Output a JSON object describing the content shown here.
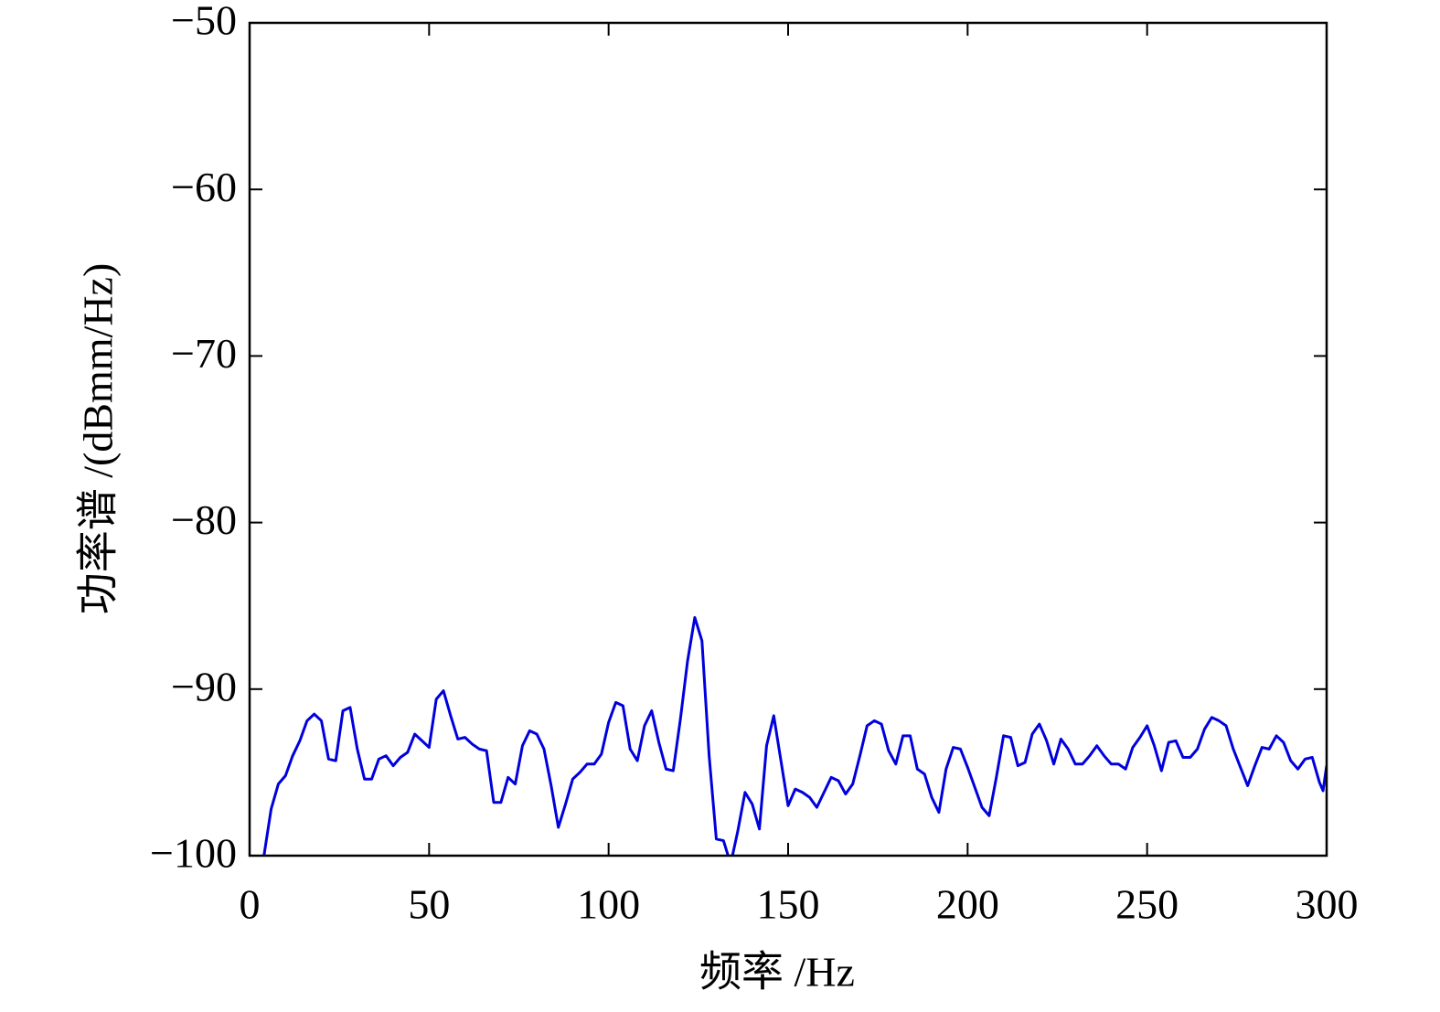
{
  "chart_data": {
    "type": "line",
    "xlabel": "频率 /Hz",
    "ylabel": "功率谱 /(dBmm/Hz)",
    "color": "#0000dd",
    "xlim": [
      0,
      300
    ],
    "ylim": [
      -100,
      -50
    ],
    "xticks": [
      0,
      50,
      100,
      150,
      200,
      250,
      300
    ],
    "yticks": [
      {
        "value": -50,
        "label": "−50"
      },
      {
        "value": -60,
        "label": "−60"
      },
      {
        "value": -70,
        "label": "−70"
      },
      {
        "value": -80,
        "label": "−80"
      },
      {
        "value": -90,
        "label": "−90"
      },
      {
        "value": -100,
        "label": "−100"
      }
    ],
    "grid": false,
    "x": [
      4,
      6,
      8,
      10,
      12,
      14,
      16,
      18,
      20,
      22,
      24,
      26,
      28,
      30,
      32,
      34,
      36,
      38,
      40,
      42,
      44,
      46,
      48,
      50,
      52,
      54,
      56,
      58,
      60,
      62,
      64,
      66,
      68,
      70,
      72,
      74,
      76,
      78,
      80,
      82,
      84,
      86,
      88,
      90,
      92,
      94,
      96,
      98,
      100,
      102,
      104,
      106,
      108,
      110,
      112,
      114,
      116,
      118,
      120,
      122,
      124,
      126,
      128,
      130,
      132,
      134,
      136,
      138,
      140,
      142,
      144,
      146,
      148,
      150,
      152,
      154,
      156,
      158,
      160,
      162,
      164,
      166,
      168,
      170,
      172,
      174,
      176,
      178,
      180,
      182,
      184,
      186,
      188,
      190,
      192,
      194,
      196,
      198,
      200,
      202,
      204,
      206,
      208,
      210,
      212,
      214,
      216,
      218,
      220,
      222,
      224,
      226,
      228,
      230,
      232,
      234,
      236,
      238,
      240,
      242,
      244,
      246,
      248,
      250,
      252,
      254,
      256,
      258,
      260,
      262,
      264,
      266,
      268,
      270,
      272,
      274,
      276,
      278,
      280,
      282,
      284,
      286,
      288,
      290,
      292,
      294,
      296,
      298,
      299,
      300
    ],
    "values": [
      -100,
      -97.2,
      -95.7,
      -95.2,
      -94,
      -93.1,
      -91.9,
      -91.5,
      -91.9,
      -94.2,
      -94.3,
      -91.3,
      -91.1,
      -93.6,
      -95.4,
      -95.4,
      -94.2,
      -94,
      -94.6,
      -94.1,
      -93.8,
      -92.7,
      -93.1,
      -93.5,
      -90.6,
      -90.1,
      -91.6,
      -93,
      -92.9,
      -93.3,
      -93.6,
      -93.7,
      -96.8,
      -96.8,
      -95.3,
      -95.7,
      -93.4,
      -92.5,
      -92.7,
      -93.6,
      -95.8,
      -98.3,
      -96.9,
      -95.4,
      -95,
      -94.5,
      -94.5,
      -93.9,
      -92,
      -90.8,
      -91,
      -93.6,
      -94.3,
      -92.2,
      -91.3,
      -93.2,
      -94.8,
      -94.9,
      -91.8,
      -88.3,
      -85.7,
      -87.1,
      -94,
      -99,
      -99.1,
      -100.5,
      -98.5,
      -96.2,
      -96.9,
      -98.4,
      -93.4,
      -91.6,
      -94.3,
      -97,
      -96,
      -96.2,
      -96.5,
      -97.1,
      -96.2,
      -95.3,
      -95.5,
      -96.3,
      -95.7,
      -94,
      -92.2,
      -91.9,
      -92.1,
      -93.7,
      -94.5,
      -92.8,
      -92.8,
      -94.8,
      -95.1,
      -96.5,
      -97.4,
      -94.8,
      -93.5,
      -93.6,
      -94.7,
      -95.9,
      -97.1,
      -97.6,
      -95.3,
      -92.8,
      -92.9,
      -94.6,
      -94.4,
      -92.7,
      -92.1,
      -93.1,
      -94.5,
      -93,
      -93.6,
      -94.5,
      -94.5,
      -94,
      -93.4,
      -94,
      -94.5,
      -94.5,
      -94.8,
      -93.5,
      -92.9,
      -92.2,
      -93.4,
      -94.9,
      -93.2,
      -93.1,
      -94.1,
      -94.1,
      -93.6,
      -92.4,
      -91.7,
      -91.9,
      -92.2,
      -93.6,
      -94.7,
      -95.8,
      -94.6,
      -93.5,
      -93.6,
      -92.8,
      -93.2,
      -94.3,
      -94.8,
      -94.2,
      -94.1,
      -95.6,
      -96.1,
      -94.6
    ]
  }
}
